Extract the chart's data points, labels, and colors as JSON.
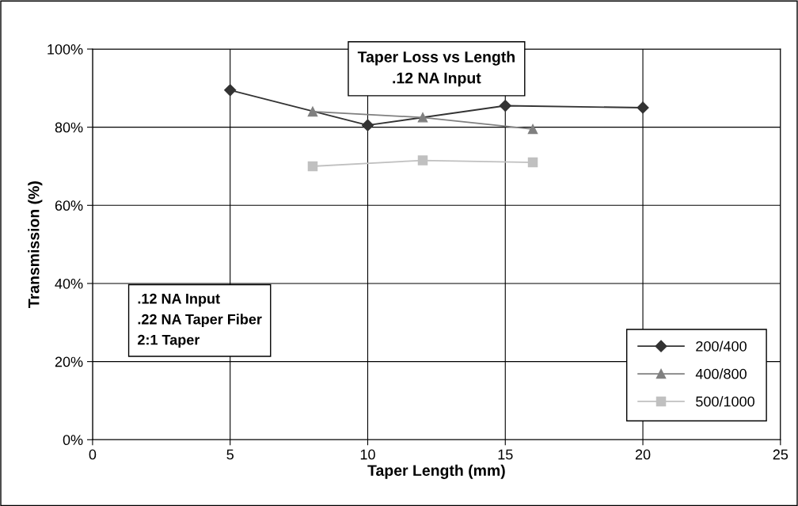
{
  "chart_data": {
    "type": "line",
    "title": "Taper Loss vs Length",
    "subtitle": ".12 NA Input",
    "xlabel": "Taper Length (mm)",
    "ylabel": "Transmission (%)",
    "annotations": [
      ".12 NA Input",
      ".22 NA Taper Fiber",
      "2:1 Taper"
    ],
    "series": [
      {
        "name": "200/400",
        "color": "#333333",
        "marker": "diamond",
        "x": [
          5,
          10,
          15,
          20
        ],
        "values": [
          89.5,
          80.5,
          85.5,
          85
        ]
      },
      {
        "name": "400/800",
        "color": "#808080",
        "marker": "triangle",
        "x": [
          8,
          12,
          16
        ],
        "values": [
          84,
          82.5,
          79.5
        ]
      },
      {
        "name": "500/1000",
        "color": "#c0c0c0",
        "marker": "square",
        "x": [
          8,
          12,
          16
        ],
        "values": [
          70,
          71.5,
          71
        ]
      }
    ],
    "xlim": [
      0,
      25
    ],
    "xticks": [
      0,
      5,
      10,
      15,
      20,
      25
    ],
    "ylim": [
      0,
      100
    ],
    "yticks": [
      {
        "value": 0,
        "label": "0%"
      },
      {
        "value": 20,
        "label": "20%"
      },
      {
        "value": 40,
        "label": "40%"
      },
      {
        "value": 60,
        "label": "60%"
      },
      {
        "value": 80,
        "label": "80%"
      },
      {
        "value": 100,
        "label": "100%"
      }
    ],
    "grid": true,
    "legend": "bottom right",
    "line_style": "solid"
  }
}
